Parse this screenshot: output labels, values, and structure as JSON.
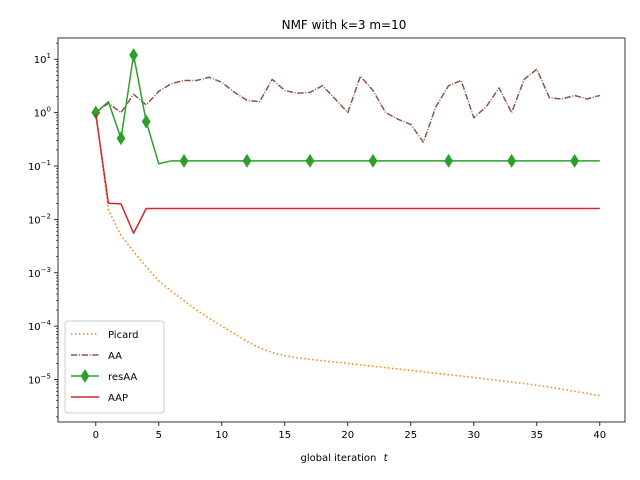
{
  "chart_data": {
    "type": "line",
    "title": "NMF with k=3 m=10",
    "xlabel": "global iteration",
    "xlabel_var": "t",
    "ylabel": "",
    "yscale": "log",
    "xlim": [
      -3,
      42
    ],
    "ylim": [
      1.6e-06,
      25
    ],
    "xticks": [
      0,
      5,
      10,
      15,
      20,
      25,
      30,
      35,
      40
    ],
    "yticks": [
      {
        "value": 1e-05,
        "mant": "10",
        "exp": "−5"
      },
      {
        "value": 0.0001,
        "mant": "10",
        "exp": "−4"
      },
      {
        "value": 0.001,
        "mant": "10",
        "exp": "−3"
      },
      {
        "value": 0.01,
        "mant": "10",
        "exp": "−2"
      },
      {
        "value": 0.1,
        "mant": "10",
        "exp": "−1"
      },
      {
        "value": 1,
        "mant": "10",
        "exp": "0"
      },
      {
        "value": 10,
        "mant": "10",
        "exp": "1"
      }
    ],
    "legend_position": "lower-left",
    "series": [
      {
        "name": "Picard",
        "color": "#ff7f0e",
        "style": "dotted",
        "marker": "none",
        "x": [
          0,
          1,
          2,
          3,
          4,
          5,
          6,
          7,
          8,
          9,
          10,
          11,
          12,
          13,
          14,
          15,
          16,
          17,
          18,
          19,
          20,
          21,
          22,
          23,
          24,
          25,
          26,
          27,
          28,
          29,
          30,
          31,
          32,
          33,
          34,
          35,
          36,
          37,
          38,
          39,
          40
        ],
        "values": [
          0.95,
          0.015,
          0.005,
          0.0025,
          0.0013,
          0.0007,
          0.00045,
          0.0003,
          0.0002,
          0.00014,
          0.0001,
          7.2e-05,
          5.2e-05,
          3.9e-05,
          3.2e-05,
          2.8e-05,
          2.55e-05,
          2.4e-05,
          2.25e-05,
          2.12e-05,
          2e-05,
          1.88e-05,
          1.77e-05,
          1.67e-05,
          1.57e-05,
          1.48e-05,
          1.39e-05,
          1.31e-05,
          1.23e-05,
          1.16e-05,
          1.09e-05,
          1.02e-05,
          9.6e-06,
          9e-06,
          8.4e-06,
          7.8e-06,
          7.2e-06,
          6.6e-06,
          6e-06,
          5.5e-06,
          5e-06
        ]
      },
      {
        "name": "AA",
        "color": "#8c564b",
        "style": "dashdot",
        "marker": "none",
        "x": [
          0,
          1,
          2,
          3,
          4,
          5,
          6,
          7,
          8,
          9,
          10,
          11,
          12,
          13,
          14,
          15,
          16,
          17,
          18,
          19,
          20,
          21,
          22,
          23,
          24,
          25,
          26,
          27,
          28,
          29,
          30,
          31,
          32,
          33,
          34,
          35,
          36,
          37,
          38,
          39,
          40
        ],
        "values": [
          1.0,
          1.5,
          1.0,
          2.2,
          1.4,
          2.5,
          3.5,
          4.0,
          4.0,
          4.6,
          3.7,
          2.4,
          1.7,
          1.6,
          4.2,
          2.6,
          2.3,
          2.4,
          3.2,
          1.8,
          1.0,
          4.8,
          2.6,
          1.0,
          0.75,
          0.6,
          0.28,
          1.3,
          3.2,
          4.0,
          0.8,
          1.3,
          2.9,
          1.0,
          4.2,
          6.5,
          1.9,
          1.8,
          2.1,
          1.8,
          2.1
        ]
      },
      {
        "name": "resAA",
        "color": "#2ca02c",
        "style": "solid",
        "marker": "diamond",
        "x": [
          0,
          1,
          2,
          3,
          4,
          5,
          6,
          7,
          8,
          9,
          10,
          11,
          12,
          13,
          14,
          15,
          16,
          17,
          18,
          19,
          20,
          21,
          22,
          23,
          24,
          25,
          26,
          27,
          28,
          29,
          30,
          31,
          32,
          33,
          34,
          35,
          36,
          37,
          38,
          39,
          40
        ],
        "values": [
          1.0,
          1.6,
          0.33,
          12,
          0.68,
          0.11,
          0.125,
          0.125,
          0.125,
          0.125,
          0.125,
          0.125,
          0.125,
          0.125,
          0.125,
          0.125,
          0.125,
          0.125,
          0.125,
          0.125,
          0.125,
          0.125,
          0.125,
          0.125,
          0.125,
          0.125,
          0.125,
          0.125,
          0.125,
          0.125,
          0.125,
          0.125,
          0.125,
          0.125,
          0.125,
          0.125,
          0.125,
          0.125,
          0.125,
          0.125,
          0.125
        ],
        "marker_x": [
          0,
          2,
          3,
          4,
          7,
          12,
          17,
          22,
          28,
          33,
          38
        ]
      },
      {
        "name": "AAP",
        "color": "#d62728",
        "style": "solid",
        "marker": "none",
        "x": [
          0,
          1,
          2,
          3,
          4,
          5,
          6,
          7,
          8,
          9,
          10,
          11,
          12,
          13,
          14,
          15,
          16,
          17,
          18,
          19,
          20,
          21,
          22,
          23,
          24,
          25,
          26,
          27,
          28,
          29,
          30,
          31,
          32,
          33,
          34,
          35,
          36,
          37,
          38,
          39,
          40
        ],
        "values": [
          0.95,
          0.02,
          0.0195,
          0.0055,
          0.016,
          0.016,
          0.016,
          0.016,
          0.016,
          0.016,
          0.016,
          0.016,
          0.016,
          0.016,
          0.016,
          0.016,
          0.016,
          0.016,
          0.016,
          0.016,
          0.016,
          0.016,
          0.016,
          0.016,
          0.016,
          0.016,
          0.016,
          0.016,
          0.016,
          0.016,
          0.016,
          0.016,
          0.016,
          0.016,
          0.016,
          0.016,
          0.016,
          0.016,
          0.016,
          0.016,
          0.016
        ]
      }
    ]
  }
}
